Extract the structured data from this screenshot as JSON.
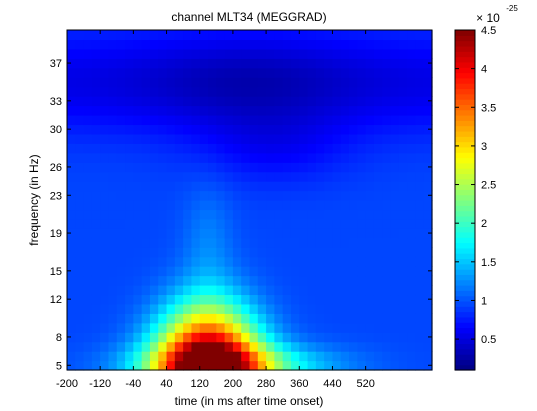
{
  "chart_data": {
    "type": "heatmap",
    "title": "channel MLT34 (MEGGRAD)",
    "xlabel": "time (in ms after time onset)",
    "ylabel": "frequency (in Hz)",
    "xlim": [
      -200,
      680
    ],
    "ylim": [
      4.5,
      40.5
    ],
    "x_ticks": [
      -200,
      -120,
      -40,
      40,
      120,
      200,
      280,
      360,
      440,
      520
    ],
    "y_ticks": [
      5,
      8,
      12,
      15,
      19,
      23,
      26,
      30,
      33,
      37
    ],
    "colorbar": {
      "min": 0.1,
      "max": 4.5,
      "ticks": [
        0.5,
        1,
        1.5,
        2,
        2.5,
        3,
        3.5,
        4,
        4.5
      ],
      "exponent_base": "× 10",
      "exponent": "-25",
      "colormap": "jet"
    },
    "peak": {
      "time_ms": 140,
      "frequency_hz": 6,
      "value": 4.5
    },
    "description_of_values": "Single dominant low-frequency power burst centred near 140 ms and 5–8 Hz; low values (~0.1–0.3) above 28 Hz, moderate (~0.8–1.2) at the edges."
  }
}
